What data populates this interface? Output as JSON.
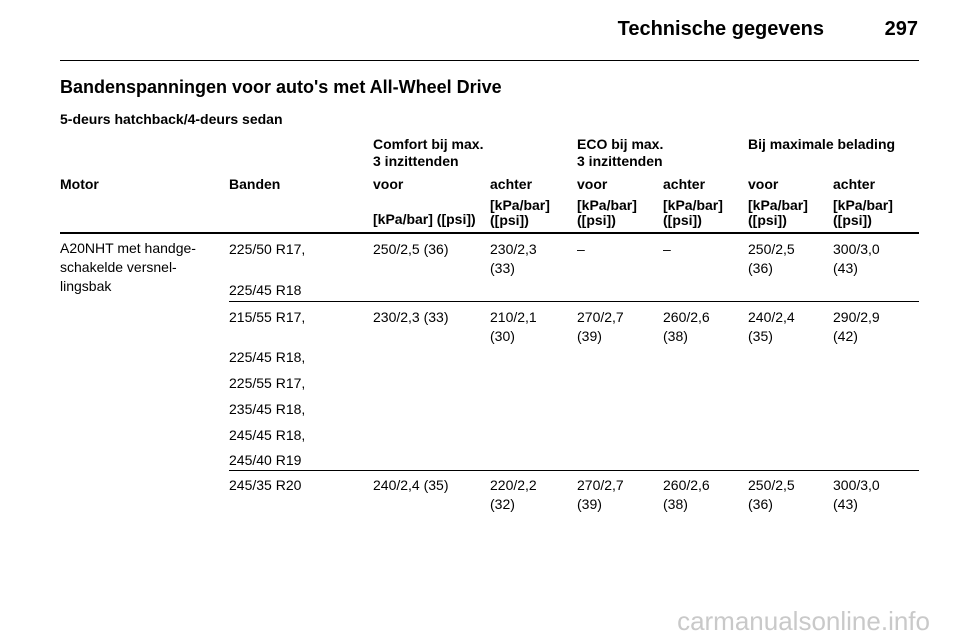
{
  "header": {
    "title": "Technische gegevens",
    "page": "297"
  },
  "section_title": "Bandenspanningen voor auto's met All-Wheel Drive",
  "subtitle": "5-deurs hatchback/4-deurs sedan",
  "groups": {
    "comfort": "Comfort bij max.\n3 inzittenden",
    "eco": "ECO bij max.\n3 inzittenden",
    "max": "Bij maximale belading"
  },
  "columns": {
    "motor": "Motor",
    "banden": "Banden",
    "voor1": "voor",
    "achter1": "achter",
    "voor2": "voor",
    "achter2": "achter",
    "voor3": "voor",
    "achter3": "achter"
  },
  "units": {
    "u1": "[kPa/bar] ([psi])",
    "u2": "[kPa/bar]\n([psi])",
    "u3": "[kPa/bar]\n([psi])",
    "u4": "[kPa/bar]\n([psi])",
    "u5": "[kPa/bar]\n([psi])",
    "u6": "[kPa/bar]\n([psi])"
  },
  "motor": "A20NHT met handge-\nschakelde versnel-\nlingsbak",
  "rows": [
    {
      "tyres": [
        "225/50 R17,",
        "225/45 R18"
      ],
      "values": [
        "250/2,5 (36)",
        "230/2,3\n(33)",
        "–",
        "–",
        "250/2,5\n(36)",
        "300/3,0\n(43)"
      ]
    },
    {
      "tyres": [
        "215/55 R17,",
        "225/45 R18,",
        "225/55 R17,",
        "235/45 R18,",
        "245/45 R18,",
        "245/40 R19"
      ],
      "values": [
        "230/2,3 (33)",
        "210/2,1\n(30)",
        "270/2,7\n(39)",
        "260/2,6\n(38)",
        "240/2,4\n(35)",
        "290/2,9\n(42)"
      ]
    },
    {
      "tyres": [
        "245/35 R20"
      ],
      "values": [
        "240/2,4 (35)",
        "220/2,2\n(32)",
        "270/2,7\n(39)",
        "260/2,6\n(38)",
        "250/2,5\n(36)",
        "300/3,0\n(43)"
      ]
    }
  ],
  "watermark": "carmanualsonline.info"
}
